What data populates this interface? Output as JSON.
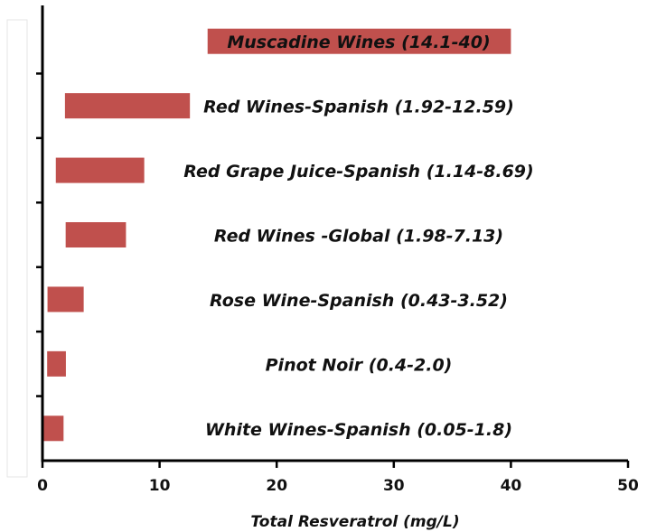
{
  "chart_data": {
    "type": "range-bar",
    "x_label": "Total Resveratrol (mg/L)",
    "categories": [
      "Muscadine Wines (14.1-40)",
      "Red Wines-Spanish (1.92-12.59)",
      "Red Grape Juice-Spanish (1.14-8.69)",
      "Red Wines -Global (1.98-7.13)",
      "Rose Wine-Spanish (0.43-3.52)",
      "Pinot Noir (0.4-2.0)",
      "White Wines-Spanish (0.05-1.8)"
    ],
    "low": [
      14.1,
      1.92,
      1.14,
      1.98,
      0.43,
      0.4,
      0.05
    ],
    "high": [
      40,
      12.59,
      8.69,
      7.13,
      3.52,
      2.0,
      1.8
    ],
    "color": "#c0504d",
    "xlim": [
      0,
      50
    ],
    "xticks": [
      0,
      10,
      20,
      30,
      40,
      50
    ]
  }
}
